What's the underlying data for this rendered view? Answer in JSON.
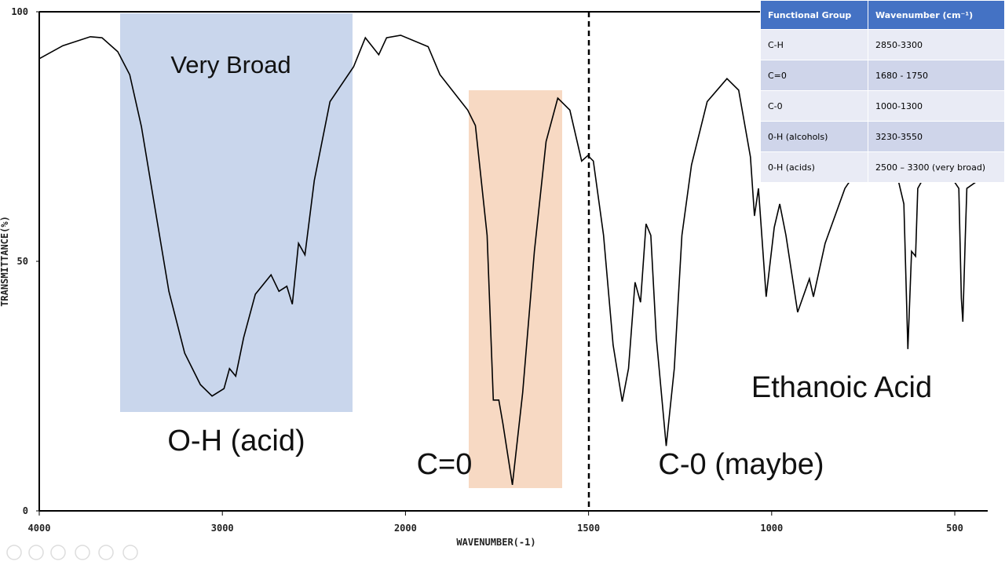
{
  "chart_data": {
    "type": "line",
    "xlabel": "WAVENUMBER(-1)",
    "ylabel": "TRANSMITTANCE(%)",
    "x": [
      4000,
      3871,
      3721,
      3657,
      3571,
      3506,
      3442,
      3356,
      3292,
      3206,
      3120,
      3056,
      2991,
      2961,
      2927,
      2884,
      2820,
      2734,
      2691,
      2648,
      2618,
      2584,
      2549,
      2498,
      2412,
      2283,
      2219,
      2146,
      2103,
      2026,
      1938,
      1906,
      1830,
      1809,
      1777,
      1760,
      1745,
      1734,
      1708,
      1680,
      1648,
      1616,
      1584,
      1551,
      1519,
      1502,
      1487,
      1459,
      1433,
      1408,
      1391,
      1373,
      1358,
      1343,
      1330,
      1315,
      1288,
      1266,
      1245,
      1219,
      1176,
      1122,
      1090,
      1058,
      1047,
      1036,
      1015,
      993,
      978,
      961,
      929,
      897,
      886,
      854,
      800,
      750,
      700,
      660,
      639,
      628,
      618,
      607,
      601,
      560,
      520,
      489,
      482,
      478,
      471,
      467,
      440,
      410
    ],
    "values": [
      90.6,
      93.2,
      95,
      94.8,
      92,
      87.4,
      77,
      58,
      44,
      31.6,
      25.3,
      23,
      24.5,
      28.5,
      27,
      34.7,
      43.4,
      47.3,
      44,
      45,
      41.4,
      53.6,
      51.3,
      66.2,
      82,
      89,
      94.8,
      91.4,
      94.8,
      95.3,
      93,
      87.4,
      80.3,
      77.2,
      55.2,
      22.2,
      22.2,
      17.5,
      5.2,
      23.7,
      52,
      74,
      82.7,
      80.3,
      70.1,
      71.2,
      70.1,
      55.2,
      33.2,
      21.9,
      28.5,
      45.8,
      41.8,
      57.5,
      55.2,
      34.7,
      13,
      28.5,
      55.2,
      69.3,
      82,
      86.6,
      84.3,
      70.9,
      59.1,
      64.6,
      42.9,
      56.8,
      61.5,
      55.2,
      39.8,
      46.5,
      42.9,
      53.6,
      64.6,
      70,
      74,
      68,
      61.5,
      32.4,
      52,
      51,
      64.6,
      70,
      68,
      64.6,
      42.6,
      37.9,
      55.2,
      64.6,
      66,
      67
    ],
    "color": "#000000",
    "xlim": [
      4000,
      410
    ],
    "xticks": [
      4000,
      3000,
      2000,
      1500,
      1000,
      500
    ],
    "ylim": [
      0,
      100
    ],
    "yticks": [
      0,
      50,
      100
    ],
    "annotations": [
      "Very Broad",
      "O-H (acid)",
      "C=0",
      "C-0 (maybe)",
      "Ethanoic Acid"
    ]
  },
  "table": {
    "header": [
      "Functional Group",
      "Wavenumber (cm⁻¹)"
    ],
    "rows": [
      [
        "C-H",
        "2850-3300"
      ],
      [
        "C=0",
        "1680 - 1750"
      ],
      [
        "C-0",
        "1000-1300"
      ],
      [
        "0-H (alcohols)",
        "3230-3550"
      ],
      [
        "0-H (acids)",
        "2500 – 3300 (very broad)"
      ]
    ]
  }
}
